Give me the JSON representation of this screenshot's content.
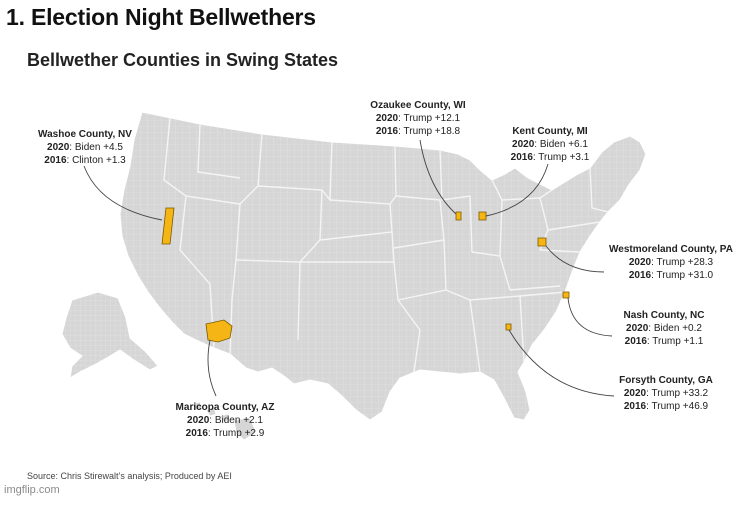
{
  "heading": "1. Election Night Bellwethers",
  "subtitle": "Bellwether Counties in Swing States",
  "source": "Source: Chris Stirewalt’s analysis; Produced by AEI",
  "watermark": "imgflip.com",
  "colors": {
    "land": "#d6d6d6",
    "border": "#ffffff",
    "highlight": "#f5b514",
    "leader": "#444444"
  },
  "counties": [
    {
      "name": "Washoe County, NV",
      "y2020": "2020",
      "r2020": ": Biden +4.5",
      "y2016": "2016",
      "r2016": ": Clinton +1.3"
    },
    {
      "name": "Ozaukee County, WI",
      "y2020": "2020",
      "r2020": ": Trump +12.1",
      "y2016": "2016",
      "r2016": ": Trump +18.8"
    },
    {
      "name": "Kent County, MI",
      "y2020": "2020",
      "r2020": ": Biden +6.1",
      "y2016": "2016",
      "r2016": ": Trump +3.1"
    },
    {
      "name": "Westmoreland County, PA",
      "y2020": "2020",
      "r2020": ": Trump +28.3",
      "y2016": "2016",
      "r2016": ": Trump +31.0"
    },
    {
      "name": "Nash County, NC",
      "y2020": "2020",
      "r2020": ": Biden +0.2",
      "y2016": "2016",
      "r2016": ": Trump +1.1"
    },
    {
      "name": "Forsyth County, GA",
      "y2020": "2020",
      "r2020": ": Trump +33.2",
      "y2016": "2016",
      "r2016": ": Trump +46.9"
    },
    {
      "name": "Maricopa County, AZ",
      "y2020": "2020",
      "r2020": ": Biden +2.1",
      "y2016": "2016",
      "r2016": ": Trump +2.9"
    }
  ]
}
